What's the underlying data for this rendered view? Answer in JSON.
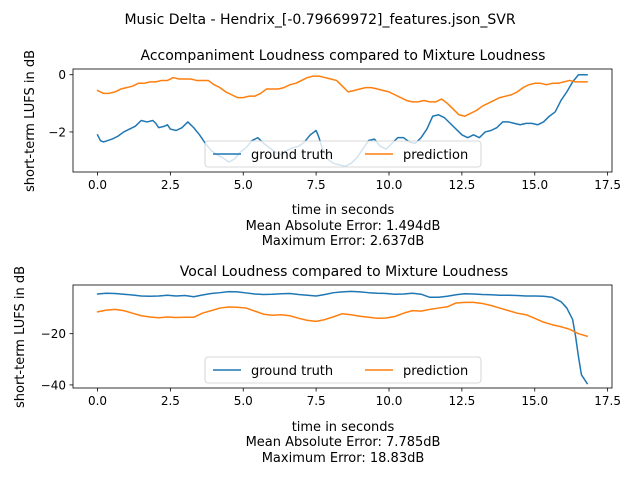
{
  "figure": {
    "suptitle": "Music Delta - Hendrix_[-0.79669972]_features.json_SVR"
  },
  "colors": {
    "ground_truth": "#1f77b4",
    "prediction": "#ff7f0e",
    "axes": "#000000",
    "legend_border": "#cccccc"
  },
  "chart_data": [
    {
      "type": "line",
      "title": "Accompaniment Loudness compared to Mixture Loudness",
      "xlabel": "time in seconds",
      "ylabel": "short-term LUFS in dB",
      "xlim": [
        -0.84,
        17.65
      ],
      "ylim": [
        -3.4,
        0.2
      ],
      "xticks": [
        0.0,
        2.5,
        5.0,
        7.5,
        10.0,
        12.5,
        15.0,
        17.5
      ],
      "xtick_labels": [
        "0.0",
        "2.5",
        "5.0",
        "7.5",
        "10.0",
        "12.5",
        "15.0",
        "17.5"
      ],
      "yticks": [
        0,
        -2
      ],
      "ytick_labels": [
        "0",
        "−2"
      ],
      "grid": false,
      "legend": {
        "placement": "lower center",
        "ncol": 2
      },
      "annotations": [
        "Mean Absolute Error: 1.494dB",
        "Maximum Error: 2.637dB"
      ],
      "series": [
        {
          "name": "ground truth",
          "color": "#1f77b4",
          "x": [
            0.0,
            0.1,
            0.2,
            0.3,
            0.5,
            0.7,
            0.9,
            1.1,
            1.3,
            1.5,
            1.7,
            1.9,
            2.0,
            2.1,
            2.3,
            2.4,
            2.5,
            2.7,
            2.9,
            3.1,
            3.3,
            3.5,
            3.7,
            3.9,
            4.1,
            4.3,
            4.5,
            4.7,
            4.9,
            5.1,
            5.3,
            5.5,
            5.7,
            5.9,
            6.1,
            6.3,
            6.5,
            6.7,
            6.9,
            7.1,
            7.3,
            7.5,
            7.6,
            7.7,
            7.9,
            8.1,
            8.3,
            8.5,
            8.7,
            8.9,
            9.1,
            9.3,
            9.5,
            9.7,
            9.9,
            10.1,
            10.3,
            10.5,
            10.7,
            10.9,
            11.1,
            11.3,
            11.5,
            11.7,
            11.9,
            12.1,
            12.3,
            12.5,
            12.7,
            12.9,
            13.1,
            13.3,
            13.5,
            13.7,
            13.9,
            14.1,
            14.3,
            14.5,
            14.7,
            14.9,
            15.1,
            15.3,
            15.5,
            15.7,
            15.9,
            16.1,
            16.3,
            16.5,
            16.8
          ],
          "values": [
            -2.1,
            -2.3,
            -2.35,
            -2.32,
            -2.25,
            -2.15,
            -2.0,
            -1.9,
            -1.8,
            -1.6,
            -1.65,
            -1.6,
            -1.7,
            -1.85,
            -1.8,
            -1.75,
            -1.9,
            -1.95,
            -1.85,
            -1.65,
            -1.85,
            -2.1,
            -2.4,
            -2.65,
            -2.8,
            -2.9,
            -3.05,
            -2.95,
            -2.7,
            -2.55,
            -2.3,
            -2.2,
            -2.4,
            -2.55,
            -2.7,
            -2.8,
            -2.65,
            -2.55,
            -2.5,
            -2.35,
            -2.1,
            -1.95,
            -2.2,
            -2.55,
            -2.95,
            -3.1,
            -3.15,
            -3.2,
            -3.1,
            -2.9,
            -2.6,
            -2.3,
            -2.25,
            -2.5,
            -2.6,
            -2.4,
            -2.2,
            -2.2,
            -2.35,
            -2.4,
            -2.2,
            -1.9,
            -1.45,
            -1.4,
            -1.5,
            -1.7,
            -1.9,
            -2.1,
            -2.2,
            -2.1,
            -2.2,
            -2.0,
            -1.95,
            -1.85,
            -1.65,
            -1.65,
            -1.7,
            -1.75,
            -1.7,
            -1.7,
            -1.75,
            -1.65,
            -1.45,
            -1.3,
            -0.9,
            -0.6,
            -0.25,
            0.0,
            0.0
          ]
        },
        {
          "name": "prediction",
          "color": "#ff7f0e",
          "x": [
            0.0,
            0.2,
            0.4,
            0.6,
            0.8,
            1.0,
            1.2,
            1.4,
            1.6,
            1.8,
            2.0,
            2.2,
            2.4,
            2.6,
            2.8,
            3.0,
            3.2,
            3.4,
            3.6,
            3.8,
            4.0,
            4.2,
            4.4,
            4.6,
            4.8,
            5.0,
            5.2,
            5.4,
            5.6,
            5.8,
            6.0,
            6.2,
            6.4,
            6.6,
            6.8,
            7.0,
            7.2,
            7.4,
            7.6,
            7.8,
            8.0,
            8.2,
            8.4,
            8.6,
            8.8,
            9.0,
            9.2,
            9.4,
            9.6,
            9.8,
            10.0,
            10.2,
            10.4,
            10.6,
            10.8,
            11.0,
            11.2,
            11.4,
            11.6,
            11.8,
            12.0,
            12.2,
            12.4,
            12.6,
            12.8,
            13.0,
            13.2,
            13.4,
            13.6,
            13.8,
            14.0,
            14.2,
            14.4,
            14.6,
            14.8,
            15.0,
            15.2,
            15.4,
            15.6,
            15.8,
            16.0,
            16.2,
            16.4,
            16.6,
            16.8
          ],
          "values": [
            -0.55,
            -0.65,
            -0.65,
            -0.6,
            -0.5,
            -0.45,
            -0.4,
            -0.3,
            -0.3,
            -0.25,
            -0.25,
            -0.2,
            -0.2,
            -0.1,
            -0.15,
            -0.15,
            -0.15,
            -0.2,
            -0.2,
            -0.2,
            -0.35,
            -0.45,
            -0.6,
            -0.7,
            -0.8,
            -0.8,
            -0.75,
            -0.75,
            -0.65,
            -0.5,
            -0.5,
            -0.5,
            -0.45,
            -0.35,
            -0.3,
            -0.2,
            -0.1,
            -0.05,
            -0.05,
            -0.1,
            -0.15,
            -0.2,
            -0.4,
            -0.6,
            -0.55,
            -0.5,
            -0.45,
            -0.45,
            -0.5,
            -0.55,
            -0.6,
            -0.7,
            -0.8,
            -0.9,
            -0.95,
            -0.95,
            -0.9,
            -0.95,
            -0.95,
            -0.85,
            -1.0,
            -1.2,
            -1.4,
            -1.45,
            -1.35,
            -1.25,
            -1.1,
            -1.0,
            -0.9,
            -0.8,
            -0.75,
            -0.7,
            -0.6,
            -0.45,
            -0.35,
            -0.3,
            -0.3,
            -0.35,
            -0.3,
            -0.3,
            -0.25,
            -0.2,
            -0.25,
            -0.25,
            -0.25
          ]
        }
      ]
    },
    {
      "type": "line",
      "title": "Vocal Loudness compared to Mixture Loudness",
      "xlabel": "time in seconds",
      "ylabel": "short-term LUFS in dB",
      "xlim": [
        -0.84,
        17.65
      ],
      "ylim": [
        -41.2,
        -1.0
      ],
      "xticks": [
        0.0,
        2.5,
        5.0,
        7.5,
        10.0,
        12.5,
        15.0,
        17.5
      ],
      "xtick_labels": [
        "0.0",
        "2.5",
        "5.0",
        "7.5",
        "10.0",
        "12.5",
        "15.0",
        "17.5"
      ],
      "yticks": [
        -20,
        -40
      ],
      "ytick_labels": [
        "−20",
        "−40"
      ],
      "grid": false,
      "legend": {
        "placement": "lower center",
        "ncol": 2
      },
      "annotations": [
        "Mean Absolute Error: 7.785dB",
        "Maximum Error: 18.83dB"
      ],
      "series": [
        {
          "name": "ground truth",
          "color": "#1f77b4",
          "x": [
            0.0,
            0.3,
            0.6,
            0.9,
            1.2,
            1.5,
            1.8,
            2.1,
            2.4,
            2.7,
            3.0,
            3.3,
            3.6,
            3.9,
            4.2,
            4.5,
            4.8,
            5.1,
            5.4,
            5.7,
            6.0,
            6.3,
            6.6,
            6.9,
            7.2,
            7.5,
            7.8,
            8.1,
            8.4,
            8.7,
            9.0,
            9.3,
            9.6,
            9.9,
            10.2,
            10.5,
            10.8,
            11.1,
            11.4,
            11.7,
            12.0,
            12.3,
            12.6,
            12.9,
            13.2,
            13.5,
            13.8,
            14.1,
            14.4,
            14.7,
            15.0,
            15.3,
            15.6,
            15.9,
            16.1,
            16.3,
            16.4,
            16.5,
            16.6,
            16.8
          ],
          "values": [
            -4.5,
            -4.2,
            -4.3,
            -4.6,
            -4.9,
            -5.3,
            -5.4,
            -5.3,
            -5.0,
            -5.3,
            -5.1,
            -5.6,
            -4.9,
            -4.3,
            -4.0,
            -3.6,
            -3.7,
            -4.1,
            -4.5,
            -4.7,
            -4.6,
            -4.4,
            -4.3,
            -4.7,
            -5.0,
            -5.3,
            -4.7,
            -4.0,
            -3.7,
            -3.5,
            -3.7,
            -4.0,
            -4.2,
            -4.3,
            -4.6,
            -4.5,
            -4.2,
            -4.6,
            -5.8,
            -5.8,
            -5.4,
            -4.8,
            -4.4,
            -4.5,
            -4.7,
            -4.8,
            -5.0,
            -5.0,
            -5.1,
            -5.3,
            -5.3,
            -5.4,
            -5.8,
            -7.5,
            -10.0,
            -14.5,
            -21.0,
            -29.0,
            -36.0,
            -39.5
          ]
        },
        {
          "name": "prediction",
          "color": "#ff7f0e",
          "x": [
            0.0,
            0.3,
            0.6,
            0.9,
            1.2,
            1.5,
            1.8,
            2.1,
            2.4,
            2.7,
            3.0,
            3.3,
            3.6,
            3.9,
            4.2,
            4.5,
            4.8,
            5.1,
            5.4,
            5.7,
            6.0,
            6.3,
            6.6,
            6.9,
            7.2,
            7.5,
            7.8,
            8.1,
            8.4,
            8.7,
            9.0,
            9.3,
            9.6,
            9.9,
            10.2,
            10.5,
            10.8,
            11.1,
            11.4,
            11.7,
            12.0,
            12.3,
            12.6,
            12.9,
            13.2,
            13.5,
            13.8,
            14.1,
            14.4,
            14.7,
            15.0,
            15.3,
            15.6,
            15.9,
            16.2,
            16.5,
            16.8
          ],
          "values": [
            -11.5,
            -10.8,
            -10.5,
            -11.0,
            -12.0,
            -13.0,
            -13.5,
            -13.8,
            -13.5,
            -13.7,
            -13.6,
            -13.6,
            -12.0,
            -11.0,
            -10.0,
            -9.6,
            -9.7,
            -10.0,
            -11.2,
            -12.4,
            -12.8,
            -12.6,
            -13.0,
            -14.0,
            -14.8,
            -15.2,
            -14.5,
            -13.4,
            -12.2,
            -12.6,
            -13.2,
            -13.6,
            -14.0,
            -13.9,
            -13.3,
            -12.0,
            -11.0,
            -11.2,
            -10.5,
            -10.0,
            -9.5,
            -8.0,
            -7.8,
            -7.8,
            -8.2,
            -9.0,
            -10.0,
            -11.0,
            -12.0,
            -12.6,
            -14.0,
            -15.5,
            -16.5,
            -17.3,
            -18.3,
            -20.0,
            -21.0
          ]
        }
      ]
    }
  ]
}
